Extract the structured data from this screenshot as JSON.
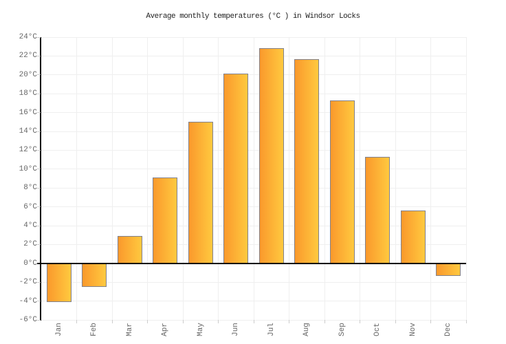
{
  "title": "Average monthly temperatures (°C ) in Windsor Locks",
  "chart_data": {
    "type": "bar",
    "title": "Average monthly temperatures (°C ) in Windsor Locks",
    "categories": [
      "Jan",
      "Feb",
      "Mar",
      "Apr",
      "May",
      "Jun",
      "Jul",
      "Aug",
      "Sep",
      "Oct",
      "Nov",
      "Dec"
    ],
    "values": [
      -4.1,
      -2.5,
      2.9,
      9.1,
      15.0,
      20.1,
      22.8,
      21.7,
      17.3,
      11.3,
      5.6,
      -1.3
    ],
    "xlabel": "",
    "ylabel": "",
    "ylim": [
      -6,
      24
    ],
    "ytick_step": 2,
    "ytick_suffix": "°C",
    "grid": true,
    "legend": "none",
    "colors": {
      "bar_gradient_left": "#FA992C",
      "bar_gradient_right": "#FFC93F",
      "bar_border": "#80808C",
      "zero_line": "#000000",
      "axis_line": "#000000",
      "gridline": "#EFEFEF",
      "tick_label": "#666666",
      "title_text": "#222222",
      "background": "#FFFFFF"
    }
  }
}
